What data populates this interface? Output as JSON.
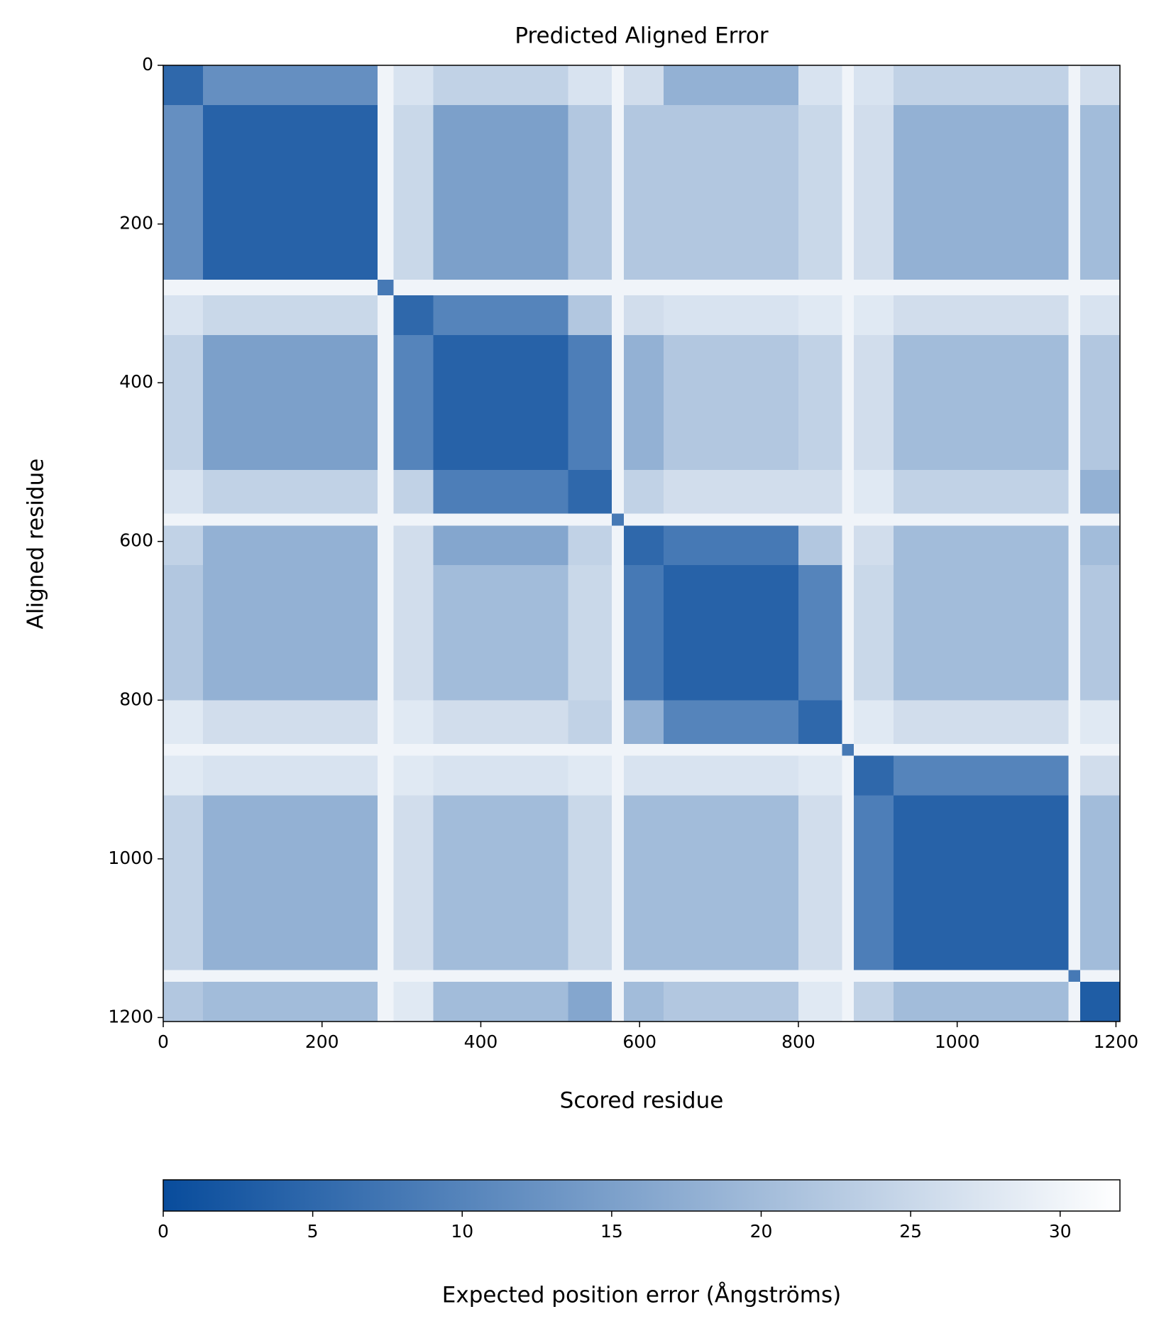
{
  "chart_data": {
    "type": "heatmap",
    "title": "Predicted Aligned Error",
    "x_label": "Scored residue",
    "y_label": "Aligned residue",
    "colorbar_label": "Expected position error (Ångströms)",
    "x_edges": [
      0,
      50,
      270,
      290,
      340,
      510,
      565,
      580,
      630,
      800,
      855,
      870,
      920,
      1140,
      1155,
      1205
    ],
    "y_edges": [
      0,
      50,
      270,
      290,
      340,
      510,
      565,
      580,
      630,
      800,
      855,
      870,
      920,
      1140,
      1155,
      1205
    ],
    "values": [
      [
        5,
        12,
        30,
        27,
        24,
        27,
        30,
        26,
        18,
        27,
        30,
        27,
        24,
        30,
        26
      ],
      [
        12,
        4,
        30,
        25,
        15,
        22,
        30,
        22,
        22,
        25,
        30,
        26,
        18,
        30,
        20
      ],
      [
        30,
        30,
        8,
        30,
        30,
        30,
        30,
        30,
        30,
        30,
        30,
        30,
        30,
        30,
        30
      ],
      [
        27,
        25,
        30,
        5,
        10,
        22,
        30,
        26,
        27,
        28,
        30,
        28,
        26,
        30,
        27
      ],
      [
        24,
        15,
        30,
        10,
        4,
        9,
        30,
        18,
        22,
        24,
        30,
        26,
        20,
        30,
        22
      ],
      [
        27,
        24,
        30,
        24,
        9,
        5,
        30,
        24,
        26,
        26,
        30,
        28,
        24,
        30,
        18
      ],
      [
        30,
        30,
        30,
        30,
        30,
        30,
        8,
        30,
        30,
        30,
        30,
        30,
        30,
        30,
        30
      ],
      [
        24,
        18,
        30,
        26,
        16,
        24,
        30,
        5,
        8,
        22,
        30,
        26,
        20,
        30,
        20
      ],
      [
        22,
        18,
        30,
        26,
        20,
        25,
        30,
        8,
        4,
        10,
        30,
        25,
        20,
        30,
        22
      ],
      [
        28,
        26,
        30,
        28,
        26,
        24,
        30,
        18,
        10,
        5,
        30,
        28,
        26,
        30,
        28
      ],
      [
        30,
        30,
        30,
        30,
        30,
        30,
        30,
        30,
        30,
        30,
        8,
        30,
        30,
        30,
        30
      ],
      [
        28,
        27,
        30,
        28,
        27,
        28,
        30,
        27,
        27,
        28,
        30,
        5,
        10,
        30,
        26
      ],
      [
        24,
        18,
        30,
        26,
        20,
        25,
        30,
        20,
        20,
        26,
        30,
        9,
        4,
        30,
        20
      ],
      [
        30,
        30,
        30,
        30,
        30,
        30,
        30,
        30,
        30,
        30,
        30,
        30,
        30,
        8,
        30
      ],
      [
        22,
        20,
        30,
        28,
        20,
        16,
        30,
        20,
        22,
        28,
        30,
        24,
        20,
        30,
        3
      ]
    ],
    "xlim": [
      0,
      1205
    ],
    "ylim": [
      0,
      1205
    ],
    "y_inverted": true,
    "xticks": [
      0,
      200,
      400,
      600,
      800,
      1000,
      1200
    ],
    "yticks": [
      0,
      200,
      400,
      600,
      800,
      1000,
      1200
    ],
    "clim": [
      0,
      32
    ],
    "cticks": [
      0,
      5,
      10,
      15,
      20,
      25,
      30
    ],
    "colormap": [
      "#084c9c",
      "#ffffff"
    ]
  }
}
